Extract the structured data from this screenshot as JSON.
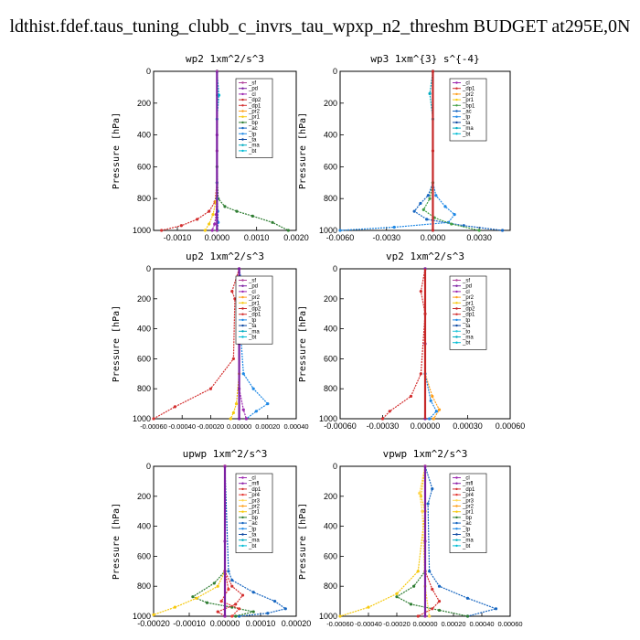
{
  "page_title": "ldthist.fdef.taus_tuning_clubb_c_invrs_tau_wpxp_n2_threshm  BUDGET at295E,0N",
  "series_colors": {
    "_sf": "#b0409a",
    "_pd": "#7b1fa2",
    "_cl": "#9c27b0",
    "_dp1": "#d32f2f",
    "_dp2": "#c62828",
    "_pr1": "#f6c90e",
    "_pr2": "#ff9f1a",
    "_pr3": "#ffd54f",
    "_pr4": "#e53935",
    "_bp": "#2e7d32",
    "_bp1": "#43a047",
    "_ac": "#1565c0",
    "_tp": "#1e88e5",
    "_ta": "#0d47a1",
    "_ma": "#00acc1",
    "_bt": "#00bcd4",
    "_mfl": "#8e24aa",
    "_to": "#26c6da"
  },
  "chart_data": [
    {
      "type": "line",
      "title": "wp2   1xm^2/s^3",
      "ylabel": "Pressure  [hPa]",
      "xlim": [
        -0.0016,
        0.002
      ],
      "ylim": [
        1000,
        0
      ],
      "xticks": [
        -0.001,
        0.0,
        0.001,
        0.002
      ],
      "xticklabels": [
        "-0.0010",
        "0.0000",
        "0.0010",
        "0.0020"
      ],
      "yticks": [
        0,
        200,
        400,
        600,
        800,
        1000
      ],
      "yticklabels": [
        "0",
        "200",
        "400",
        "600",
        "800",
        "1000"
      ],
      "legend": [
        "_sf",
        "_pd",
        "_cl",
        "_dp2",
        "_dp1",
        "_pr2",
        "_pr1",
        "_bp",
        "_ac",
        "_tp",
        "_ta",
        "_ma",
        "_bt"
      ],
      "series": [
        {
          "name": "_cl",
          "x": [
            0,
            0,
            0,
            -2e-05,
            -6e-05,
            -0.00012
          ],
          "y": [
            0,
            400,
            800,
            900,
            960,
            1000
          ]
        },
        {
          "name": "_dp1",
          "x": [
            0,
            0,
            -5e-05,
            -0.0002,
            -0.0005,
            -0.0009,
            -0.0014
          ],
          "y": [
            0,
            700,
            820,
            880,
            930,
            970,
            1000
          ]
        },
        {
          "name": "_pr1",
          "x": [
            0,
            0,
            -3e-05,
            -0.0001,
            -0.0002,
            -0.0003
          ],
          "y": [
            0,
            700,
            820,
            900,
            960,
            1000
          ]
        },
        {
          "name": "_bp",
          "x": [
            0,
            1e-05,
            0.0,
            3e-05,
            0.0002,
            0.0005,
            0.0009,
            0.0014,
            0.0018
          ],
          "y": [
            0,
            150,
            600,
            800,
            850,
            880,
            910,
            950,
            1000
          ]
        },
        {
          "name": "_tp",
          "x": [
            0,
            0,
            2e-05,
            3e-05,
            1e-05
          ],
          "y": [
            0,
            700,
            880,
            950,
            1000
          ]
        },
        {
          "name": "_bt",
          "x": [
            0,
            5e-05,
            0,
            0,
            0
          ],
          "y": [
            0,
            150,
            300,
            800,
            1000
          ]
        },
        {
          "name": "_sf",
          "x": [
            0,
            0,
            0
          ],
          "y": [
            0,
            500,
            1000
          ]
        }
      ]
    },
    {
      "type": "line",
      "title": "wp3   1xm^{3} s^{-4}",
      "ylabel": "Pressure  [hPa]",
      "xlim": [
        -0.006,
        0.005
      ],
      "ylim": [
        1000,
        0
      ],
      "xticks": [
        -0.006,
        -0.003,
        0.0,
        0.003
      ],
      "xticklabels": [
        "-0.0060",
        "-0.0030",
        "0.0000",
        "0.0030"
      ],
      "yticks": [
        0,
        200,
        400,
        600,
        800,
        1000
      ],
      "yticklabels": [
        "0",
        "200",
        "400",
        "600",
        "800",
        "1000"
      ],
      "legend": [
        "_cl",
        "_dp1",
        "_pr2",
        "_pr1",
        "_bp1",
        "_ac",
        "_tp",
        "_ta",
        "_ma",
        "_bt"
      ],
      "series": [
        {
          "name": "_tp",
          "x": [
            0,
            0,
            0.0002,
            0.0008,
            0.0014,
            0.001,
            -0.0025,
            -0.006
          ],
          "y": [
            0,
            700,
            780,
            850,
            900,
            950,
            980,
            1000
          ]
        },
        {
          "name": "_ac",
          "x": [
            0,
            0,
            -0.0003,
            -0.0008,
            -0.0012,
            -0.0004,
            0.002,
            0.0045
          ],
          "y": [
            0,
            700,
            780,
            830,
            880,
            930,
            970,
            1000
          ]
        },
        {
          "name": "_bp1",
          "x": [
            0,
            0,
            -0.0002,
            -0.0006,
            0.0001,
            0.0012,
            0.003
          ],
          "y": [
            0,
            700,
            800,
            870,
            920,
            960,
            1000
          ]
        },
        {
          "name": "_ma",
          "x": [
            0,
            -0.0002,
            0,
            0
          ],
          "y": [
            0,
            140,
            300,
            1000
          ]
        },
        {
          "name": "_dp1",
          "x": [
            0,
            0,
            0
          ],
          "y": [
            0,
            500,
            1000
          ]
        }
      ]
    },
    {
      "type": "line",
      "title": "up2   1xm^2/s^3",
      "ylabel": "Pressure  [hPa]",
      "xlim": [
        -0.0006,
        0.0004
      ],
      "ylim": [
        1000,
        0
      ],
      "xticks": [
        -0.0006,
        -0.0004,
        -0.0002,
        0.0,
        0.0002,
        0.0004
      ],
      "xticklabels": [
        "-0.00060",
        "-0.00040",
        "-0.00020",
        "0.00000",
        "0.00020",
        "0.00040"
      ],
      "yticks": [
        0,
        200,
        400,
        600,
        800,
        1000
      ],
      "yticklabels": [
        "0",
        "200",
        "400",
        "600",
        "800",
        "1000"
      ],
      "legend": [
        "_sf",
        "_pd",
        "_cl",
        "_pr2",
        "_pr1",
        "_dp2",
        "_dp1",
        "_tp",
        "_ta",
        "_ma",
        "_bt"
      ],
      "series": [
        {
          "name": "_dp1",
          "x": [
            0,
            -5e-05,
            -3e-05,
            -4e-05,
            -0.0002,
            -0.00045,
            -0.0006
          ],
          "y": [
            0,
            150,
            200,
            600,
            800,
            920,
            1000
          ]
        },
        {
          "name": "_tp",
          "x": [
            0,
            3e-05,
            0,
            3e-05,
            0.0001,
            0.0002,
            0.00012,
            5e-05
          ],
          "y": [
            0,
            150,
            300,
            700,
            800,
            900,
            950,
            1000
          ]
        },
        {
          "name": "_pr1",
          "x": [
            0,
            0,
            -2e-05,
            -4e-05,
            -6e-05
          ],
          "y": [
            0,
            700,
            900,
            960,
            1000
          ]
        },
        {
          "name": "_cl",
          "x": [
            0,
            0,
            3e-05,
            5e-05
          ],
          "y": [
            0,
            800,
            940,
            1000
          ]
        },
        {
          "name": "_pd",
          "x": [
            0,
            0,
            0
          ],
          "y": [
            0,
            500,
            1000
          ]
        }
      ]
    },
    {
      "type": "line",
      "title": "vp2   1xm^2/s^3",
      "ylabel": "Pressure  [hPa]",
      "xlim": [
        -0.0006,
        0.0006
      ],
      "ylim": [
        1000,
        0
      ],
      "xticks": [
        -0.0006,
        -0.0003,
        0.0,
        0.0003,
        0.0006
      ],
      "xticklabels": [
        "-0.00060",
        "-0.00030",
        "0.00000",
        "0.00030",
        "0.00060"
      ],
      "yticks": [
        0,
        200,
        400,
        600,
        800,
        1000
      ],
      "yticklabels": [
        "0",
        "200",
        "400",
        "600",
        "800",
        "1000"
      ],
      "legend": [
        "_sf",
        "_pd",
        "_cl",
        "_pr2",
        "_pr1",
        "_dp2",
        "_dp1",
        "_tp",
        "_ta",
        "_to",
        "_ma",
        "_bt"
      ],
      "series": [
        {
          "name": "_dp1",
          "x": [
            0,
            -3e-05,
            0,
            -3e-05,
            -0.0001,
            -0.00025,
            -0.0003
          ],
          "y": [
            0,
            150,
            300,
            700,
            850,
            950,
            1000
          ]
        },
        {
          "name": "_pr2",
          "x": [
            0,
            0,
            5e-05,
            0.0001,
            6e-05
          ],
          "y": [
            0,
            700,
            850,
            940,
            1000
          ]
        },
        {
          "name": "_tp",
          "x": [
            0,
            0,
            4e-05,
            8e-05,
            3e-05
          ],
          "y": [
            0,
            700,
            880,
            950,
            1000
          ]
        },
        {
          "name": "_pd",
          "x": [
            0,
            0,
            0
          ],
          "y": [
            0,
            500,
            1000
          ]
        }
      ]
    },
    {
      "type": "line",
      "title": "upwp   1xm^2/s^3",
      "ylabel": "Pressure  [hPa]",
      "xlim": [
        -0.0002,
        0.0002
      ],
      "ylim": [
        1000,
        0
      ],
      "xticks": [
        -0.0002,
        -0.0001,
        0.0,
        0.0001,
        0.0002
      ],
      "xticklabels": [
        "-0.00020",
        "-0.00010",
        "0.00000",
        "0.00010",
        "0.00020"
      ],
      "yticks": [
        0,
        200,
        400,
        600,
        800,
        1000
      ],
      "yticklabels": [
        "0",
        "200",
        "400",
        "600",
        "800",
        "1000"
      ],
      "legend": [
        "_cl",
        "_mfl",
        "_dp1",
        "_pr4",
        "_pr3",
        "_pr2",
        "_pr1",
        "_bp",
        "_ac",
        "_tp",
        "_ta",
        "_ma",
        "_bt"
      ],
      "series": [
        {
          "name": "_ac",
          "x": [
            0,
            1e-05,
            2e-05,
            8e-05,
            0.00014,
            0.00017,
            0.00012,
            4e-05
          ],
          "y": [
            0,
            700,
            760,
            840,
            900,
            950,
            980,
            1000
          ]
        },
        {
          "name": "_bp",
          "x": [
            0,
            0,
            -3e-05,
            -9e-05,
            -5e-05,
            2e-05,
            8e-05,
            3e-05
          ],
          "y": [
            0,
            700,
            780,
            870,
            910,
            940,
            970,
            1000
          ]
        },
        {
          "name": "_pr1",
          "x": [
            0,
            0,
            -2e-05,
            -8e-05,
            -0.00014,
            -0.0002
          ],
          "y": [
            0,
            700,
            800,
            880,
            940,
            990
          ]
        },
        {
          "name": "_dp1",
          "x": [
            0,
            0,
            2e-05,
            5e-05,
            3e-05,
            -2e-05,
            0
          ],
          "y": [
            0,
            700,
            800,
            860,
            920,
            970,
            1000
          ]
        },
        {
          "name": "_pr4",
          "x": [
            0,
            0,
            1e-05,
            -1e-05,
            4e-05,
            2e-05
          ],
          "y": [
            0,
            700,
            820,
            900,
            950,
            1000
          ]
        },
        {
          "name": "_cl",
          "x": [
            0,
            0,
            0
          ],
          "y": [
            0,
            500,
            1000
          ]
        }
      ]
    },
    {
      "type": "line",
      "title": "vpwp   1xm^2/s^3",
      "ylabel": "Pressure  [hPa]",
      "xlim": [
        -0.0006,
        0.0006
      ],
      "ylim": [
        1000,
        0
      ],
      "xticks": [
        -0.0006,
        -0.0004,
        -0.0002,
        0.0,
        0.0002,
        0.0004,
        0.0006
      ],
      "xticklabels": [
        "-0.00060",
        "-0.00040",
        "-0.00020",
        "0.00000",
        "0.00020",
        "0.00040",
        "0.00060"
      ],
      "yticks": [
        0,
        200,
        400,
        600,
        800,
        1000
      ],
      "yticklabels": [
        "0",
        "200",
        "400",
        "600",
        "800",
        "1000"
      ],
      "legend": [
        "_cl",
        "_mfl",
        "_dp1",
        "_pr4",
        "_pr3",
        "_pr2",
        "_pr1",
        "_bp",
        "_ac",
        "_tp",
        "_ta",
        "_ma",
        "_bt"
      ],
      "series": [
        {
          "name": "_ac",
          "x": [
            0,
            5e-05,
            2e-05,
            3e-05,
            0.0001,
            0.0003,
            0.0005,
            0.0003
          ],
          "y": [
            0,
            150,
            250,
            700,
            800,
            880,
            950,
            1000
          ]
        },
        {
          "name": "_pr1",
          "x": [
            0,
            -3e-05,
            0,
            -5e-05,
            -0.0002,
            -0.0004,
            -0.0006
          ],
          "y": [
            0,
            200,
            300,
            700,
            850,
            940,
            1000
          ]
        },
        {
          "name": "_bp",
          "x": [
            0,
            0,
            -8e-05,
            -0.0002,
            -0.0001,
            0.0001,
            0.0003
          ],
          "y": [
            0,
            700,
            800,
            870,
            920,
            960,
            1000
          ]
        },
        {
          "name": "_dp1",
          "x": [
            0,
            0,
            5e-05,
            0.0001,
            5e-05,
            -5e-05
          ],
          "y": [
            0,
            700,
            820,
            900,
            950,
            1000
          ]
        },
        {
          "name": "_pr3",
          "x": [
            0,
            -4e-05,
            -2e-05,
            0,
            3e-05
          ],
          "y": [
            0,
            180,
            300,
            800,
            1000
          ]
        },
        {
          "name": "_cl",
          "x": [
            0,
            0,
            0
          ],
          "y": [
            0,
            500,
            1000
          ]
        }
      ]
    }
  ]
}
